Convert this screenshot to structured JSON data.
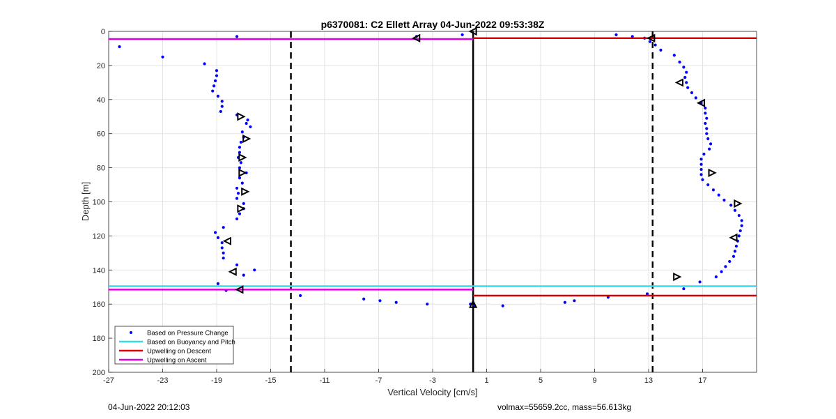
{
  "chart_data": {
    "type": "scatter",
    "title": "p6370081: C2 Ellett Array 04-Jun-2022 09:53:38Z",
    "xlabel": "Vertical Velocity [cm/s]",
    "ylabel": "Depth [m]",
    "xlim": [
      -27,
      21
    ],
    "ylim": [
      0,
      200
    ],
    "y_reversed": true,
    "grid": true,
    "legend_position": "bottom-left",
    "xticks": [
      -27,
      -23,
      -19,
      -15,
      -11,
      -7,
      -3,
      1,
      5,
      9,
      13,
      17
    ],
    "yticks": [
      0,
      20,
      40,
      60,
      80,
      100,
      120,
      140,
      160,
      180,
      200
    ],
    "vertical_lines": [
      {
        "x": -13.5,
        "style": "dashed",
        "color": "#000000"
      },
      {
        "x": 0,
        "style": "solid",
        "color": "#000000"
      },
      {
        "x": 13.3,
        "style": "dashed",
        "color": "#000000"
      }
    ],
    "series": [
      {
        "name": "Based on Pressure Change",
        "kind": "points",
        "color": "#0000ff",
        "points": [
          [
            -26.2,
            9
          ],
          [
            -23.0,
            15
          ],
          [
            -19.9,
            19
          ],
          [
            -17.5,
            3
          ],
          [
            -19.0,
            23
          ],
          [
            -19.0,
            26
          ],
          [
            -19.1,
            29
          ],
          [
            -19.2,
            32
          ],
          [
            -19.3,
            35
          ],
          [
            -18.9,
            38
          ],
          [
            -18.6,
            41
          ],
          [
            -18.6,
            44
          ],
          [
            -18.7,
            47
          ],
          [
            -17.5,
            49
          ],
          [
            -16.7,
            52
          ],
          [
            -16.8,
            54
          ],
          [
            -16.5,
            56
          ],
          [
            -17.1,
            59
          ],
          [
            -17.0,
            62
          ],
          [
            -17.2,
            65
          ],
          [
            -17.3,
            68
          ],
          [
            -17.3,
            71
          ],
          [
            -17.4,
            74
          ],
          [
            -17.2,
            77
          ],
          [
            -17.3,
            80
          ],
          [
            -16.8,
            83
          ],
          [
            -17.3,
            86
          ],
          [
            -17.1,
            89
          ],
          [
            -17.5,
            92
          ],
          [
            -17.4,
            95
          ],
          [
            -17.5,
            98
          ],
          [
            -17.0,
            101
          ],
          [
            -17.0,
            104
          ],
          [
            -17.3,
            107
          ],
          [
            -17.5,
            110
          ],
          [
            -18.5,
            115
          ],
          [
            -19.1,
            118
          ],
          [
            -18.9,
            121
          ],
          [
            -18.6,
            124
          ],
          [
            -18.6,
            127
          ],
          [
            -18.5,
            130
          ],
          [
            -18.5,
            133
          ],
          [
            -17.5,
            137
          ],
          [
            -16.2,
            140
          ],
          [
            -17.0,
            143
          ],
          [
            -18.9,
            148
          ],
          [
            -18.3,
            152
          ],
          [
            -12.8,
            155
          ],
          [
            -8.1,
            157
          ],
          [
            -6.9,
            158
          ],
          [
            -5.7,
            159
          ],
          [
            -3.4,
            160
          ],
          [
            -0.2,
            160
          ],
          [
            0.1,
            161
          ],
          [
            2.2,
            161
          ],
          [
            6.8,
            159
          ],
          [
            7.5,
            158
          ],
          [
            10.0,
            156
          ],
          [
            12.9,
            154
          ],
          [
            15.6,
            151
          ],
          [
            16.8,
            147
          ],
          [
            18.0,
            144
          ],
          [
            18.4,
            141
          ],
          [
            18.7,
            138
          ],
          [
            19.0,
            135
          ],
          [
            19.3,
            132
          ],
          [
            19.4,
            129
          ],
          [
            19.5,
            126
          ],
          [
            19.6,
            123
          ],
          [
            19.7,
            120
          ],
          [
            19.8,
            117
          ],
          [
            19.9,
            114
          ],
          [
            19.9,
            111
          ],
          [
            19.7,
            108
          ],
          [
            19.4,
            105
          ],
          [
            19.1,
            102
          ],
          [
            18.6,
            99
          ],
          [
            18.2,
            96
          ],
          [
            17.8,
            93
          ],
          [
            17.4,
            90
          ],
          [
            17.0,
            87
          ],
          [
            16.9,
            84
          ],
          [
            16.9,
            81
          ],
          [
            16.9,
            78
          ],
          [
            16.9,
            75
          ],
          [
            17.1,
            72
          ],
          [
            17.5,
            69
          ],
          [
            17.6,
            66
          ],
          [
            17.4,
            63
          ],
          [
            17.3,
            60
          ],
          [
            17.3,
            57
          ],
          [
            17.2,
            54
          ],
          [
            17.3,
            51
          ],
          [
            17.2,
            48
          ],
          [
            17.2,
            45
          ],
          [
            16.9,
            42
          ],
          [
            16.5,
            39
          ],
          [
            16.2,
            36
          ],
          [
            15.9,
            33
          ],
          [
            15.8,
            30
          ],
          [
            15.7,
            27
          ],
          [
            15.8,
            24
          ],
          [
            15.6,
            21
          ],
          [
            15.3,
            18
          ],
          [
            14.9,
            14
          ],
          [
            13.9,
            11
          ],
          [
            13.5,
            8
          ],
          [
            13.1,
            6
          ],
          [
            12.7,
            4
          ],
          [
            11.8,
            3
          ],
          [
            10.6,
            2
          ],
          [
            -0.8,
            2
          ],
          [
            -4.2,
            3
          ]
        ]
      },
      {
        "name": "Based on Buoyancy and Pitch",
        "kind": "hlines",
        "color": "#33ddee",
        "segments": [
          [
            -27,
            0,
            149.5
          ],
          [
            0,
            21,
            149.5
          ]
        ]
      },
      {
        "name": "Upwelling on Descent",
        "kind": "hlines",
        "color": "#dd0000",
        "segments": [
          [
            0,
            21,
            4
          ],
          [
            0,
            21,
            155
          ]
        ]
      },
      {
        "name": "Upwelling on Ascent",
        "kind": "hlines",
        "color": "#dd00dd",
        "segments": [
          [
            -27,
            0,
            4.5
          ],
          [
            -27,
            0,
            151.5
          ]
        ]
      }
    ],
    "markers": {
      "color": "#000000",
      "points": [
        {
          "x": -4.2,
          "y": 4,
          "dir": "left"
        },
        {
          "x": 0,
          "y": 0,
          "dir": "left"
        },
        {
          "x": -17.2,
          "y": 50,
          "dir": "right"
        },
        {
          "x": -16.8,
          "y": 63,
          "dir": "right"
        },
        {
          "x": -17.1,
          "y": 74,
          "dir": "right"
        },
        {
          "x": -17.1,
          "y": 83,
          "dir": "right"
        },
        {
          "x": -16.9,
          "y": 94,
          "dir": "right"
        },
        {
          "x": -17.2,
          "y": 104,
          "dir": "right"
        },
        {
          "x": -18.2,
          "y": 123,
          "dir": "left"
        },
        {
          "x": -17.8,
          "y": 141,
          "dir": "left"
        },
        {
          "x": -17.3,
          "y": 151.5,
          "dir": "left"
        },
        {
          "x": 0,
          "y": 160,
          "dir": "up"
        },
        {
          "x": 13.2,
          "y": 4,
          "dir": "left"
        },
        {
          "x": 15.3,
          "y": 30,
          "dir": "left"
        },
        {
          "x": 16.9,
          "y": 42,
          "dir": "left"
        },
        {
          "x": 17.7,
          "y": 83,
          "dir": "right"
        },
        {
          "x": 19.6,
          "y": 101,
          "dir": "right"
        },
        {
          "x": 19.3,
          "y": 121,
          "dir": "left"
        },
        {
          "x": 15.1,
          "y": 144,
          "dir": "right"
        }
      ]
    }
  },
  "footer": {
    "timestamp": "04-Jun-2022 20:12:03",
    "info": "volmax=55659.2cc, mass=56.613kg"
  }
}
